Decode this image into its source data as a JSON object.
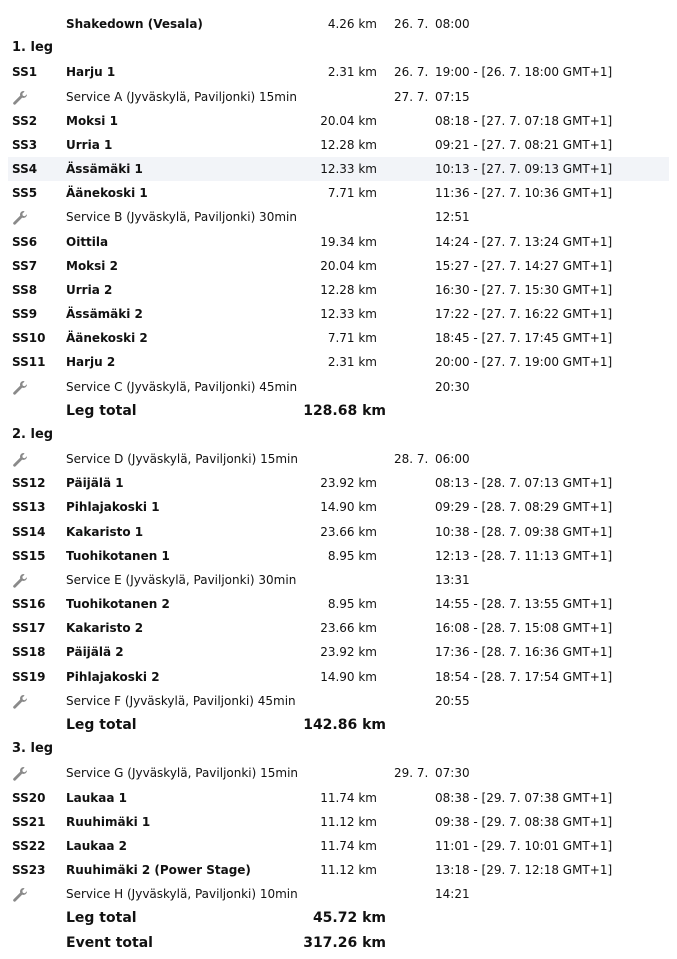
{
  "colors": {
    "highlight_row": "#f2f4f8",
    "wrench_icon": "#8a8a8a"
  },
  "rows": [
    {
      "type": "stage",
      "code": "",
      "name": "Shakedown (Vesala)",
      "km": "4.26 km",
      "date": "26. 7.",
      "time": "08:00"
    },
    {
      "type": "leg",
      "code": "1. leg"
    },
    {
      "type": "stage",
      "code": "SS1",
      "name": "Harju 1",
      "km": "2.31 km",
      "date": "26. 7.",
      "time": "19:00 - [26. 7. 18:00 GMT+1]"
    },
    {
      "type": "service",
      "icon": "wrench-icon",
      "name": "Service A (Jyväskylä, Paviljonki) 15min",
      "date": "27. 7.",
      "time": "07:15"
    },
    {
      "type": "stage",
      "code": "SS2",
      "name": "Moksi 1",
      "km": "20.04 km",
      "time": "08:18 - [27. 7. 07:18 GMT+1]"
    },
    {
      "type": "stage",
      "code": "SS3",
      "name": "Urria 1",
      "km": "12.28 km",
      "time": "09:21 - [27. 7. 08:21 GMT+1]"
    },
    {
      "type": "stage",
      "code": "SS4",
      "name": "Ässämäki 1",
      "km": "12.33 km",
      "time": "10:13 - [27. 7. 09:13 GMT+1]",
      "highlighted": true
    },
    {
      "type": "stage",
      "code": "SS5",
      "name": "Äänekoski 1",
      "km": "7.71 km",
      "time": "11:36 - [27. 7. 10:36 GMT+1]"
    },
    {
      "type": "service",
      "icon": "wrench-icon",
      "name": "Service B (Jyväskylä, Paviljonki) 30min",
      "time": "12:51"
    },
    {
      "type": "stage",
      "code": "SS6",
      "name": "Oittila",
      "km": "19.34 km",
      "time": "14:24 - [27. 7. 13:24 GMT+1]"
    },
    {
      "type": "stage",
      "code": "SS7",
      "name": "Moksi 2",
      "km": "20.04 km",
      "time": "15:27 - [27. 7. 14:27 GMT+1]"
    },
    {
      "type": "stage",
      "code": "SS8",
      "name": "Urria 2",
      "km": "12.28 km",
      "time": "16:30 - [27. 7. 15:30 GMT+1]"
    },
    {
      "type": "stage",
      "code": "SS9",
      "name": "Ässämäki 2",
      "km": "12.33 km",
      "time": "17:22 - [27. 7. 16:22 GMT+1]"
    },
    {
      "type": "stage",
      "code": "SS10",
      "name": "Äänekoski 2",
      "km": "7.71 km",
      "time": "18:45 - [27. 7. 17:45 GMT+1]"
    },
    {
      "type": "stage",
      "code": "SS11",
      "name": "Harju 2",
      "km": "2.31 km",
      "time": "20:00 - [27. 7. 19:00 GMT+1]"
    },
    {
      "type": "service",
      "icon": "wrench-icon",
      "name": "Service C (Jyväskylä, Paviljonki) 45min",
      "time": "20:30"
    },
    {
      "type": "total",
      "name": "Leg total",
      "km": "128.68 km"
    },
    {
      "type": "leg",
      "code": "2. leg"
    },
    {
      "type": "service",
      "icon": "wrench-icon",
      "name": "Service D (Jyväskylä, Paviljonki) 15min",
      "date": "28. 7.",
      "time": "06:00"
    },
    {
      "type": "stage",
      "code": "SS12",
      "name": "Päijälä 1",
      "km": "23.92 km",
      "time": "08:13 - [28. 7. 07:13 GMT+1]"
    },
    {
      "type": "stage",
      "code": "SS13",
      "name": "Pihlajakoski 1",
      "km": "14.90 km",
      "time": "09:29 - [28. 7. 08:29 GMT+1]"
    },
    {
      "type": "stage",
      "code": "SS14",
      "name": "Kakaristo 1",
      "km": "23.66 km",
      "time": "10:38 - [28. 7. 09:38 GMT+1]"
    },
    {
      "type": "stage",
      "code": "SS15",
      "name": "Tuohikotanen 1",
      "km": "8.95 km",
      "time": "12:13 - [28. 7. 11:13 GMT+1]"
    },
    {
      "type": "service",
      "icon": "wrench-icon",
      "name": "Service E (Jyväskylä, Paviljonki) 30min",
      "time": "13:31"
    },
    {
      "type": "stage",
      "code": "SS16",
      "name": "Tuohikotanen 2",
      "km": "8.95 km",
      "time": "14:55 - [28. 7. 13:55 GMT+1]"
    },
    {
      "type": "stage",
      "code": "SS17",
      "name": "Kakaristo 2",
      "km": "23.66 km",
      "time": "16:08 - [28. 7. 15:08 GMT+1]"
    },
    {
      "type": "stage",
      "code": "SS18",
      "name": "Päijälä 2",
      "km": "23.92 km",
      "time": "17:36 - [28. 7. 16:36 GMT+1]"
    },
    {
      "type": "stage",
      "code": "SS19",
      "name": "Pihlajakoski 2",
      "km": "14.90 km",
      "time": "18:54 - [28. 7. 17:54 GMT+1]"
    },
    {
      "type": "service",
      "icon": "wrench-icon",
      "name": "Service F (Jyväskylä, Paviljonki) 45min",
      "time": "20:55"
    },
    {
      "type": "total",
      "name": "Leg total",
      "km": "142.86 km"
    },
    {
      "type": "leg",
      "code": "3. leg"
    },
    {
      "type": "service",
      "icon": "wrench-icon",
      "name": "Service G (Jyväskylä, Paviljonki) 15min",
      "date": "29. 7.",
      "time": "07:30"
    },
    {
      "type": "stage",
      "code": "SS20",
      "name": "Laukaa 1",
      "km": "11.74 km",
      "time": "08:38 - [29. 7. 07:38 GMT+1]"
    },
    {
      "type": "stage",
      "code": "SS21",
      "name": "Ruuhimäki 1",
      "km": "11.12 km",
      "time": "09:38 - [29. 7. 08:38 GMT+1]"
    },
    {
      "type": "stage",
      "code": "SS22",
      "name": "Laukaa 2",
      "km": "11.74 km",
      "time": "11:01 - [29. 7. 10:01 GMT+1]"
    },
    {
      "type": "stage",
      "code": "SS23",
      "name": "Ruuhimäki 2 (Power Stage)",
      "km": "11.12 km",
      "time": "13:18 - [29. 7. 12:18 GMT+1]"
    },
    {
      "type": "service",
      "icon": "wrench-icon",
      "name": "Service H (Jyväskylä, Paviljonki) 10min",
      "time": "14:21"
    },
    {
      "type": "total",
      "name": "Leg total",
      "km": "45.72 km"
    },
    {
      "type": "total",
      "name": "Event total",
      "km": "317.26 km"
    }
  ]
}
